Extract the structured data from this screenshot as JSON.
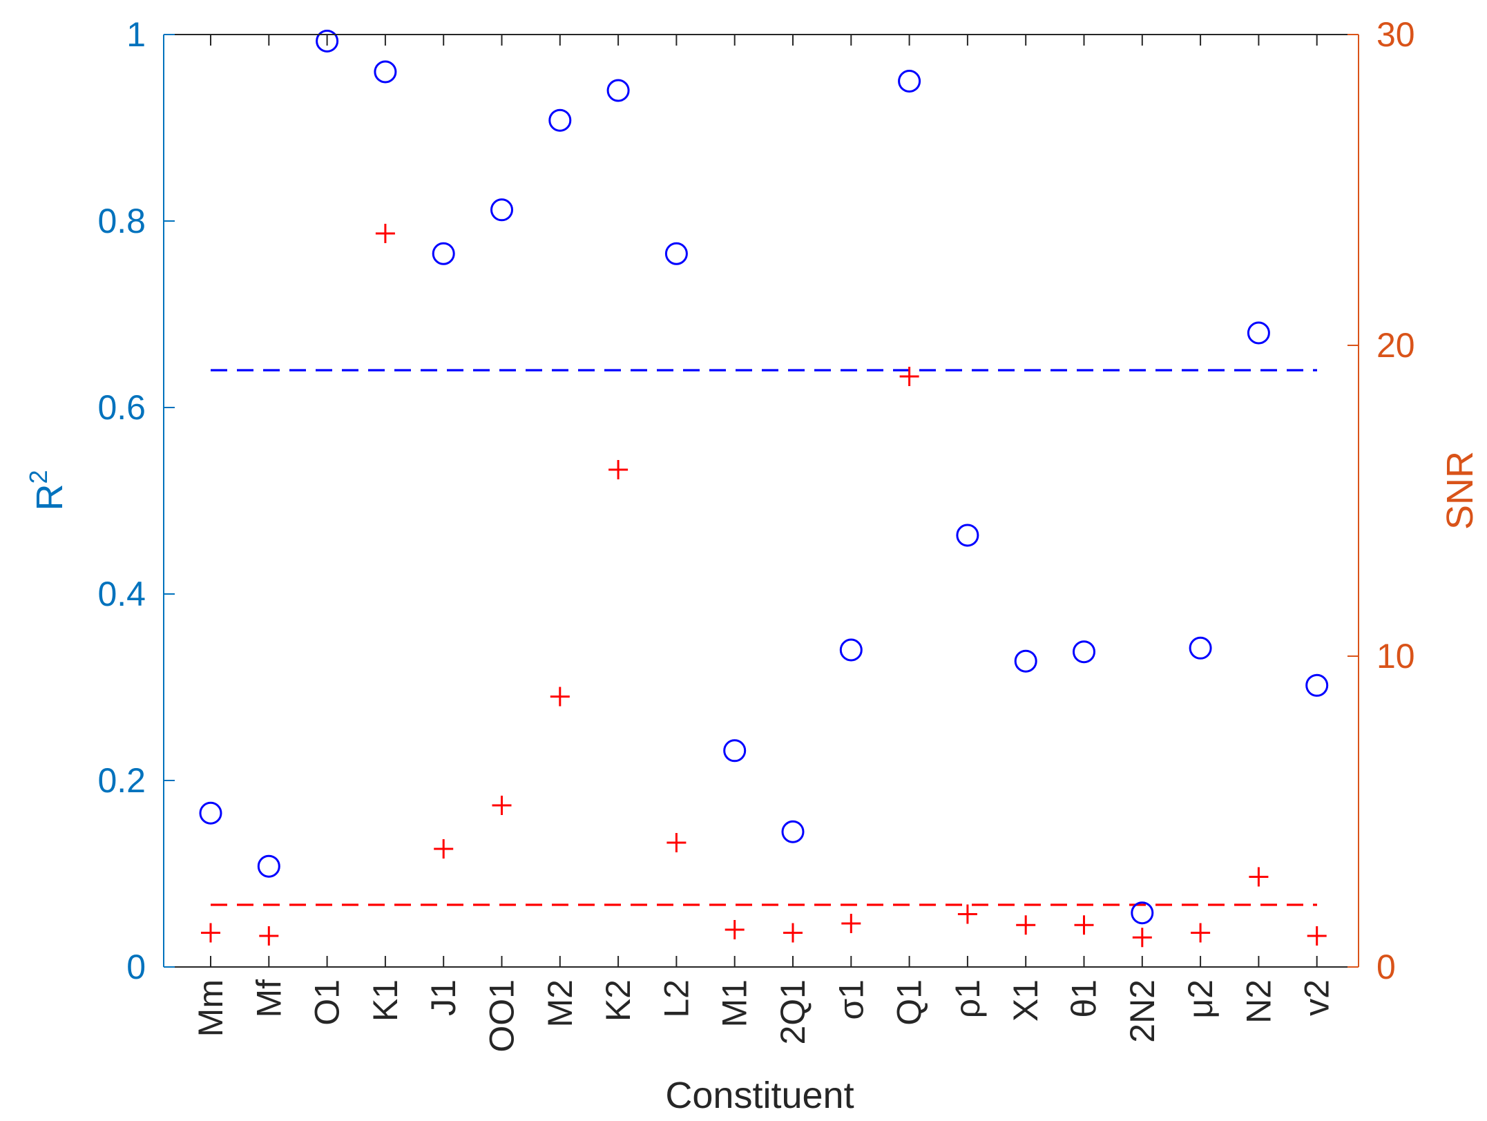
{
  "chart_data": {
    "type": "scatter",
    "xlabel": "Constituent",
    "ylabel_left": "R",
    "ylabel_left_sup": "2",
    "ylabel_right": "SNR",
    "categories": [
      "Mm",
      "Mf",
      "O1",
      "K1",
      "J1",
      "OO1",
      "M2",
      "K2",
      "L2",
      "M1",
      "2Q1",
      "σ1",
      "Q1",
      "ρ1",
      "X1",
      "θ1",
      "2N2",
      "μ2",
      "N2",
      "v2"
    ],
    "ylim_left": [
      0,
      1
    ],
    "ylim_right": [
      0,
      30
    ],
    "yticks_left": [
      "0",
      "0.2",
      "0.4",
      "0.6",
      "0.8",
      "1"
    ],
    "yticks_right": [
      "0",
      "10",
      "20",
      "30"
    ],
    "grid": false,
    "colors": {
      "left_axis": "#0072BD",
      "right_axis": "#D95319",
      "r2_marker": "#0000FF",
      "snr_marker": "#FF0000",
      "axis_box": "#262626",
      "xlabel": "#262626"
    },
    "series": [
      {
        "axis": "left",
        "marker": "circle",
        "values": [
          0.165,
          0.108,
          0.993,
          0.96,
          0.765,
          0.812,
          0.908,
          0.94,
          0.765,
          0.232,
          0.145,
          0.34,
          0.95,
          0.463,
          0.328,
          0.338,
          0.058,
          0.342,
          0.68,
          0.302
        ]
      },
      {
        "axis": "right",
        "marker": "plus",
        "values": [
          1.1,
          1.0,
          null,
          23.6,
          3.8,
          5.2,
          8.7,
          16.0,
          4.0,
          1.2,
          1.1,
          1.4,
          19.0,
          1.7,
          1.35,
          1.35,
          0.95,
          1.1,
          2.9,
          1.0
        ]
      }
    ],
    "reference_lines": [
      {
        "axis": "left",
        "value": 0.64,
        "style": "dashed",
        "color": "#0000FF"
      },
      {
        "axis": "right",
        "value": 2.0,
        "style": "dashed",
        "color": "#FF0000"
      }
    ]
  }
}
